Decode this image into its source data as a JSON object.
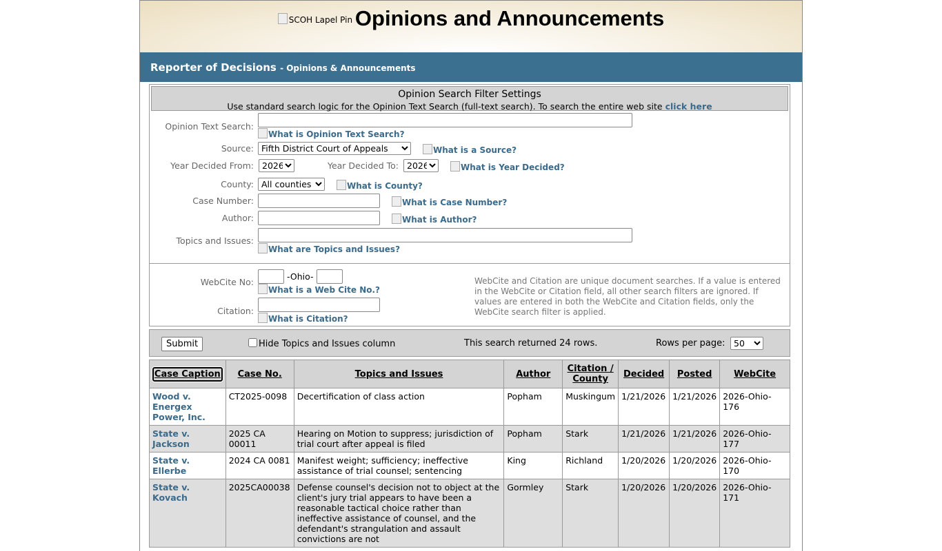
{
  "header": {
    "logo_alt": "SCOH Lapel Pin",
    "title": "Opinions and Announcements"
  },
  "bar": {
    "title": "Reporter of Decisions",
    "subtitle": "- Opinions & Announcements"
  },
  "filter": {
    "title": "Opinion Search Filter Settings",
    "subtitle": "Use standard search logic for the Opinion Text Search (full-text search). To search the entire web site",
    "click_here": "click here",
    "text_search_label": "Opinion Text Search:",
    "text_search_help": "What is Opinion Text Search?",
    "text_search_value": "",
    "source_label": "Source:",
    "source_value": "Fifth District Court of Appeals",
    "source_help": "What is a Source?",
    "year_from_label": "Year Decided From:",
    "year_from": "2026",
    "year_to_label": "Year Decided To:",
    "year_to": "2026",
    "year_help": "What is Year Decided?",
    "county_label": "County:",
    "county_value": "All counties",
    "county_help": "What is County?",
    "case_label": "Case Number:",
    "case_help": "What is Case Number?",
    "author_label": "Author:",
    "author_help": "What is Author?",
    "topics_label": "Topics and Issues:",
    "topics_help": "What are Topics and Issues?",
    "webcite_label": "WebCite No:",
    "webcite_mid": "-Ohio-",
    "webcite_help": "What is a Web Cite No.?",
    "citation_label": "Citation:",
    "citation_help": "What is Citation?",
    "note": "WebCite and Citation are unique document searches. If a value is entered in the WebCite or Citation field, all other search filters are ignored. If values are entered in both the WebCite and Citation fields, only the WebCite search filter is applied."
  },
  "controls": {
    "submit": "Submit",
    "hide_topics": "Hide Topics and Issues column",
    "hide_topics_checked": false,
    "result_text": "This search returned 24 rows.",
    "rows_label": "Rows per page:",
    "rows_value": "50"
  },
  "table": {
    "headers": [
      "Case Caption",
      "Case No.",
      "Topics and Issues",
      "Author",
      "Citation / County",
      "Decided",
      "Posted",
      "WebCite"
    ],
    "rows": [
      {
        "caption": "Wood v. Energex Power, Inc.",
        "case_no": "CT2025-0098",
        "topics": "Decertification of class action",
        "author": "Popham",
        "county": "Muskingum",
        "decided": "1/21/2026",
        "posted": "1/21/2026",
        "webcite": "2026-Ohio-176"
      },
      {
        "caption": "State v. Jackson",
        "case_no": "2025 CA 00011",
        "topics": "Hearing on Motion to suppress; jurisdiction of trial court after appeal is filed",
        "author": "Popham",
        "county": "Stark",
        "decided": "1/21/2026",
        "posted": "1/21/2026",
        "webcite": "2026-Ohio-177"
      },
      {
        "caption": "State v. Ellerbe",
        "case_no": "2024 CA 0081",
        "topics": "Manifest weight; sufficiency; ineffective assistance of trial counsel; sentencing",
        "author": "King",
        "county": "Richland",
        "decided": "1/20/2026",
        "posted": "1/20/2026",
        "webcite": "2026-Ohio-170"
      },
      {
        "caption": "State v. Kovach",
        "case_no": "2025CA00038",
        "topics": "Defense counsel's decision not to object at the client's jury trial appears to have been a reasonable tactical choice rather than ineffective assistance of counsel, and the defendant's strangulation and assault convictions are not",
        "author": "Gormley",
        "county": "Stark",
        "decided": "1/20/2026",
        "posted": "1/20/2026",
        "webcite": "2026-Ohio-171"
      }
    ]
  }
}
